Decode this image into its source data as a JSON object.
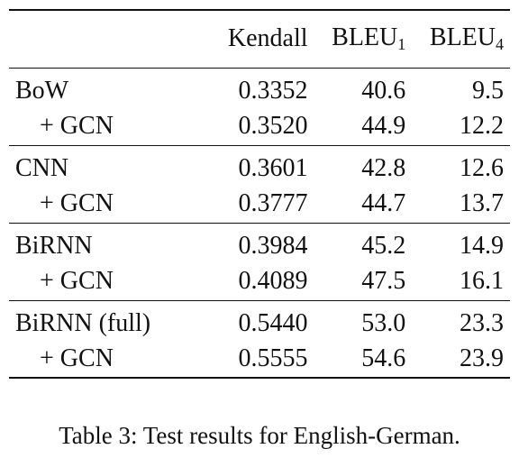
{
  "table": {
    "headers": [
      {
        "text": "",
        "sub": ""
      },
      {
        "text": "Kendall",
        "sub": ""
      },
      {
        "text": "BLEU",
        "sub": "1"
      },
      {
        "text": "BLEU",
        "sub": "4"
      }
    ],
    "rows": [
      {
        "model": "BoW",
        "kendall": "0.3352",
        "bleu1": "40.6",
        "bleu4": "9.5"
      },
      {
        "model": "+ GCN",
        "kendall": "0.3520",
        "bleu1": "44.9",
        "bleu4": "12.2"
      },
      {
        "model": "CNN",
        "kendall": "0.3601",
        "bleu1": "42.8",
        "bleu4": "12.6"
      },
      {
        "model": "+ GCN",
        "kendall": "0.3777",
        "bleu1": "44.7",
        "bleu4": "13.7"
      },
      {
        "model": "BiRNN",
        "kendall": "0.3984",
        "bleu1": "45.2",
        "bleu4": "14.9"
      },
      {
        "model": "+ GCN",
        "kendall": "0.4089",
        "bleu1": "47.5",
        "bleu4": "16.1"
      },
      {
        "model": "BiRNN (full)",
        "kendall": "0.5440",
        "bleu1": "53.0",
        "bleu4": "23.3"
      },
      {
        "model": "+ GCN",
        "kendall": "0.5555",
        "bleu1": "54.6",
        "bleu4": "23.9"
      }
    ]
  },
  "caption": "Table 3: Test results for English-German."
}
